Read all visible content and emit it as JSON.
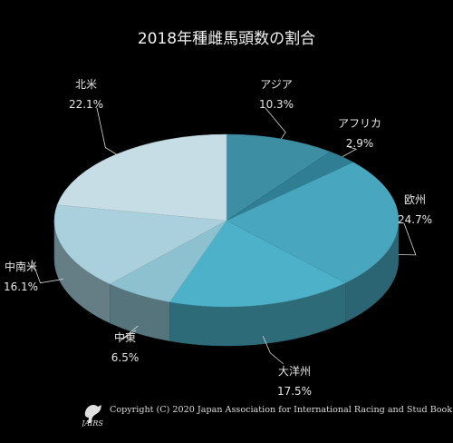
{
  "chart_data": {
    "type": "pie",
    "title": "2018年種雌馬頭数の割合",
    "categories": [
      "アジア",
      "アフリカ",
      "欧州",
      "大洋州",
      "中東",
      "中南米",
      "北米"
    ],
    "values": [
      10.3,
      2.9,
      24.7,
      17.5,
      6.5,
      16.1,
      22.1
    ],
    "value_labels": [
      "10.3%",
      "2.9%",
      "24.7%",
      "17.5%",
      "6.5%",
      "16.1%",
      "22.1%"
    ],
    "colors": [
      "#3e8ea3",
      "#2f7e93",
      "#48a6bf",
      "#4db2c9",
      "#8ec1cf",
      "#a9d0dc",
      "#c6dde6"
    ],
    "style": "3d",
    "legend": "none"
  },
  "footer": {
    "copyright": "Copyright (C) 2020 Japan Association for International Racing and Stud Book.",
    "logo_text": "JAIRS"
  }
}
